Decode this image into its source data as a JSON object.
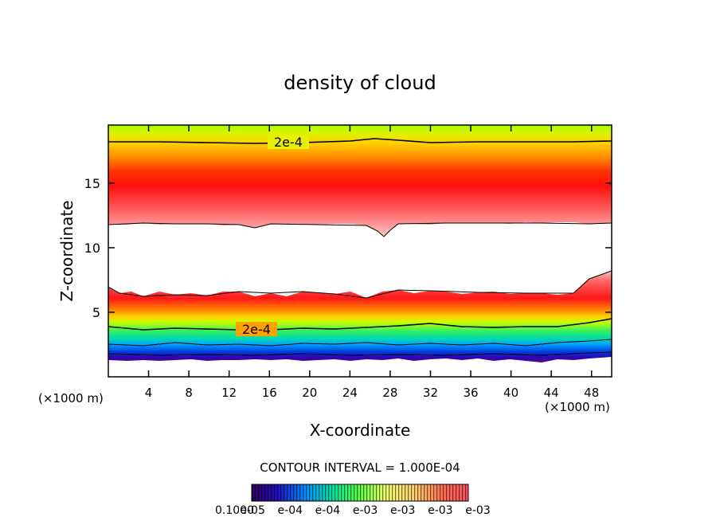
{
  "chart_data": {
    "type": "heatmap",
    "title": "density of cloud",
    "xlabel": "X-coordinate",
    "ylabel": "Z-coordinate",
    "x_unit": "(×1000 m)",
    "z_unit": "(×1000 m)",
    "xlim": [
      0,
      50
    ],
    "ylim": [
      0,
      19.5
    ],
    "x_ticks": [
      4,
      8,
      12,
      16,
      20,
      24,
      28,
      32,
      36,
      40,
      44,
      48
    ],
    "y_ticks": [
      5,
      10,
      15
    ],
    "contour_interval_text": "CONTOUR INTERVAL = 1.000E-04",
    "contour_labels": [
      {
        "text": "2e-4",
        "x": 18,
        "z": 18.7
      },
      {
        "text": "2e-4",
        "x": 15,
        "z": 3.8
      }
    ],
    "colorbar_tick_labels": [
      "0.1000",
      "e-05",
      "e-04",
      "e-04",
      "e-03",
      "e-03",
      "e-03",
      "e-03"
    ],
    "colormap": [
      "#380078",
      "#0000cc",
      "#00a0ff",
      "#00e070",
      "#b4ff00",
      "#ffe000",
      "#ff8000",
      "#ff0000",
      "#ffffff"
    ],
    "layers": [
      {
        "z_bottom": 1.2,
        "z_top": 4.5,
        "note": "lower band, blue to green"
      },
      {
        "z_bottom": 4.5,
        "z_top": 7.0,
        "note": "lower band, red"
      },
      {
        "z_bottom": 11.9,
        "z_top": 19.5,
        "note": "upper band, red to green"
      }
    ]
  }
}
